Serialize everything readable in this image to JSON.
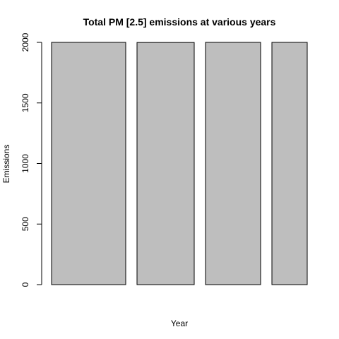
{
  "chart_data": {
    "type": "bar",
    "title": "Total PM [2.5] emissions at various years",
    "xlabel": "Year",
    "ylabel": "Emissions",
    "categories": [
      "",
      "",
      "",
      ""
    ],
    "values": [
      2000,
      1999,
      2005,
      2008
    ],
    "ylim": [
      0,
      2000
    ],
    "yticks": [
      "0",
      "500",
      "1000",
      "1500",
      "2000"
    ],
    "bar_color": "#bebebe",
    "grid": false
  }
}
